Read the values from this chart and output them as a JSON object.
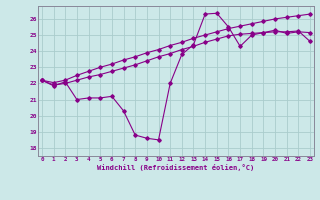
{
  "bg_color": "#cce8e8",
  "grid_color": "#aacccc",
  "line_color": "#880088",
  "xlabel": "Windchill (Refroidissement éolien,°C)",
  "xticks": [
    0,
    1,
    2,
    3,
    4,
    5,
    6,
    7,
    8,
    9,
    10,
    11,
    12,
    13,
    14,
    15,
    16,
    17,
    18,
    19,
    20,
    21,
    22,
    23
  ],
  "yticks": [
    18,
    19,
    20,
    21,
    22,
    23,
    24,
    25,
    26
  ],
  "ylim": [
    17.5,
    26.8
  ],
  "xlim": [
    -0.3,
    23.3
  ],
  "line_wavy_x": [
    0,
    1,
    2,
    3,
    4,
    5,
    6,
    7,
    8,
    9,
    10,
    11,
    12,
    13,
    14,
    15,
    16,
    17,
    18,
    19,
    20,
    21,
    22,
    23
  ],
  "line_wavy_y": [
    22.2,
    21.85,
    22.1,
    21.0,
    21.1,
    21.1,
    21.2,
    20.3,
    18.8,
    18.6,
    18.5,
    22.0,
    23.8,
    24.4,
    26.3,
    26.35,
    25.5,
    24.3,
    25.0,
    25.15,
    25.3,
    25.1,
    25.2,
    25.15
  ],
  "line_mid_x": [
    0,
    1,
    2,
    3,
    4,
    5,
    6,
    7,
    8,
    9,
    10,
    11,
    12,
    13,
    14,
    15,
    16,
    17,
    18,
    19,
    20,
    21,
    22,
    23
  ],
  "line_mid_y": [
    22.2,
    21.9,
    22.0,
    22.2,
    22.4,
    22.55,
    22.75,
    22.95,
    23.15,
    23.4,
    23.65,
    23.85,
    24.1,
    24.3,
    24.55,
    24.75,
    24.95,
    25.05,
    25.1,
    25.15,
    25.2,
    25.2,
    25.25,
    24.6
  ],
  "line_top_x": [
    0,
    1,
    2,
    3,
    4,
    5,
    6,
    7,
    8,
    9,
    10,
    11,
    12,
    13,
    14,
    15,
    16,
    17,
    18,
    19,
    20,
    21,
    22,
    23
  ],
  "line_top_y": [
    22.2,
    22.05,
    22.2,
    22.5,
    22.75,
    23.0,
    23.2,
    23.45,
    23.65,
    23.9,
    24.1,
    24.35,
    24.55,
    24.8,
    25.0,
    25.2,
    25.4,
    25.55,
    25.7,
    25.85,
    26.0,
    26.1,
    26.2,
    26.3
  ]
}
